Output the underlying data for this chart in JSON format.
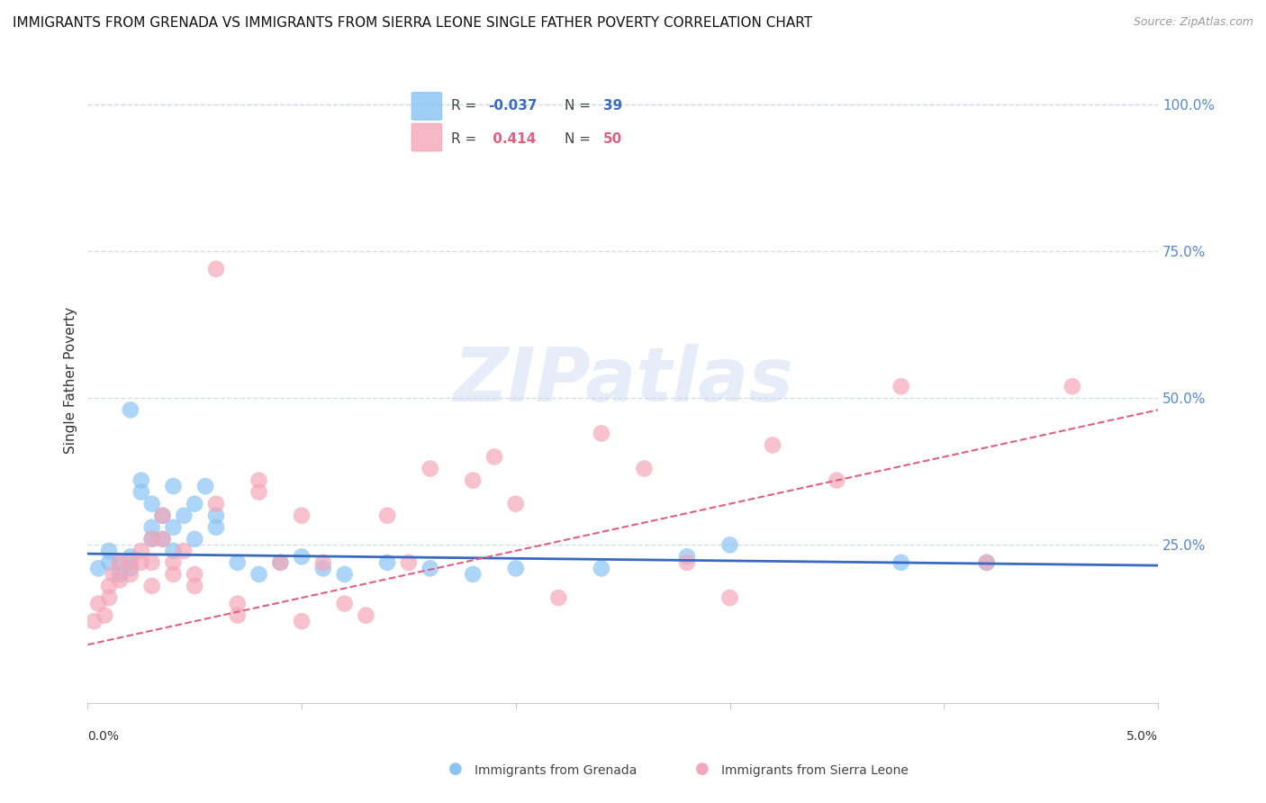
{
  "title": "IMMIGRANTS FROM GRENADA VS IMMIGRANTS FROM SIERRA LEONE SINGLE FATHER POVERTY CORRELATION CHART",
  "source": "Source: ZipAtlas.com",
  "ylabel": "Single Father Poverty",
  "right_yticks": [
    "100.0%",
    "75.0%",
    "50.0%",
    "25.0%"
  ],
  "right_ytick_vals": [
    1.0,
    0.75,
    0.5,
    0.25
  ],
  "xlim": [
    0.0,
    0.05
  ],
  "ylim": [
    -0.02,
    1.08
  ],
  "watermark_text": "ZIPatlas",
  "blue_scatter_x": [
    0.0005,
    0.001,
    0.001,
    0.0015,
    0.0015,
    0.002,
    0.002,
    0.002,
    0.0025,
    0.0025,
    0.003,
    0.003,
    0.003,
    0.0035,
    0.0035,
    0.004,
    0.004,
    0.004,
    0.0045,
    0.005,
    0.005,
    0.0055,
    0.006,
    0.006,
    0.007,
    0.008,
    0.009,
    0.01,
    0.011,
    0.012,
    0.014,
    0.016,
    0.018,
    0.02,
    0.024,
    0.028,
    0.03,
    0.038,
    0.042
  ],
  "blue_scatter_y": [
    0.21,
    0.22,
    0.24,
    0.22,
    0.2,
    0.48,
    0.23,
    0.21,
    0.36,
    0.34,
    0.32,
    0.28,
    0.26,
    0.3,
    0.26,
    0.35,
    0.28,
    0.24,
    0.3,
    0.32,
    0.26,
    0.35,
    0.3,
    0.28,
    0.22,
    0.2,
    0.22,
    0.23,
    0.21,
    0.2,
    0.22,
    0.21,
    0.2,
    0.21,
    0.21,
    0.23,
    0.25,
    0.22,
    0.22
  ],
  "pink_scatter_x": [
    0.0003,
    0.0005,
    0.0008,
    0.001,
    0.001,
    0.0012,
    0.0015,
    0.0015,
    0.002,
    0.002,
    0.0025,
    0.0025,
    0.003,
    0.003,
    0.003,
    0.0035,
    0.0035,
    0.004,
    0.004,
    0.0045,
    0.005,
    0.005,
    0.006,
    0.006,
    0.007,
    0.007,
    0.008,
    0.008,
    0.009,
    0.01,
    0.01,
    0.011,
    0.012,
    0.013,
    0.014,
    0.015,
    0.016,
    0.018,
    0.019,
    0.02,
    0.022,
    0.024,
    0.026,
    0.028,
    0.03,
    0.032,
    0.035,
    0.038,
    0.042,
    0.046
  ],
  "pink_scatter_y": [
    0.12,
    0.15,
    0.13,
    0.18,
    0.16,
    0.2,
    0.22,
    0.19,
    0.22,
    0.2,
    0.24,
    0.22,
    0.26,
    0.22,
    0.18,
    0.3,
    0.26,
    0.22,
    0.2,
    0.24,
    0.2,
    0.18,
    0.72,
    0.32,
    0.15,
    0.13,
    0.36,
    0.34,
    0.22,
    0.3,
    0.12,
    0.22,
    0.15,
    0.13,
    0.3,
    0.22,
    0.38,
    0.36,
    0.4,
    0.32,
    0.16,
    0.44,
    0.38,
    0.22,
    0.16,
    0.42,
    0.36,
    0.52,
    0.22,
    0.52
  ],
  "blue_color": "#89c4f4",
  "pink_color": "#f4a7b9",
  "blue_line_color": "#3a6abf",
  "pink_line_color": "#e06080",
  "grid_color": "#d8dce8",
  "background_color": "#ffffff",
  "right_axis_color": "#5588cc",
  "title_fontsize": 11,
  "source_fontsize": 9,
  "ylabel_fontsize": 11,
  "scatter_size": 180,
  "scatter_alpha": 0.7,
  "blue_R": "-0.037",
  "blue_N": "39",
  "pink_R": "0.414",
  "pink_N": "50"
}
